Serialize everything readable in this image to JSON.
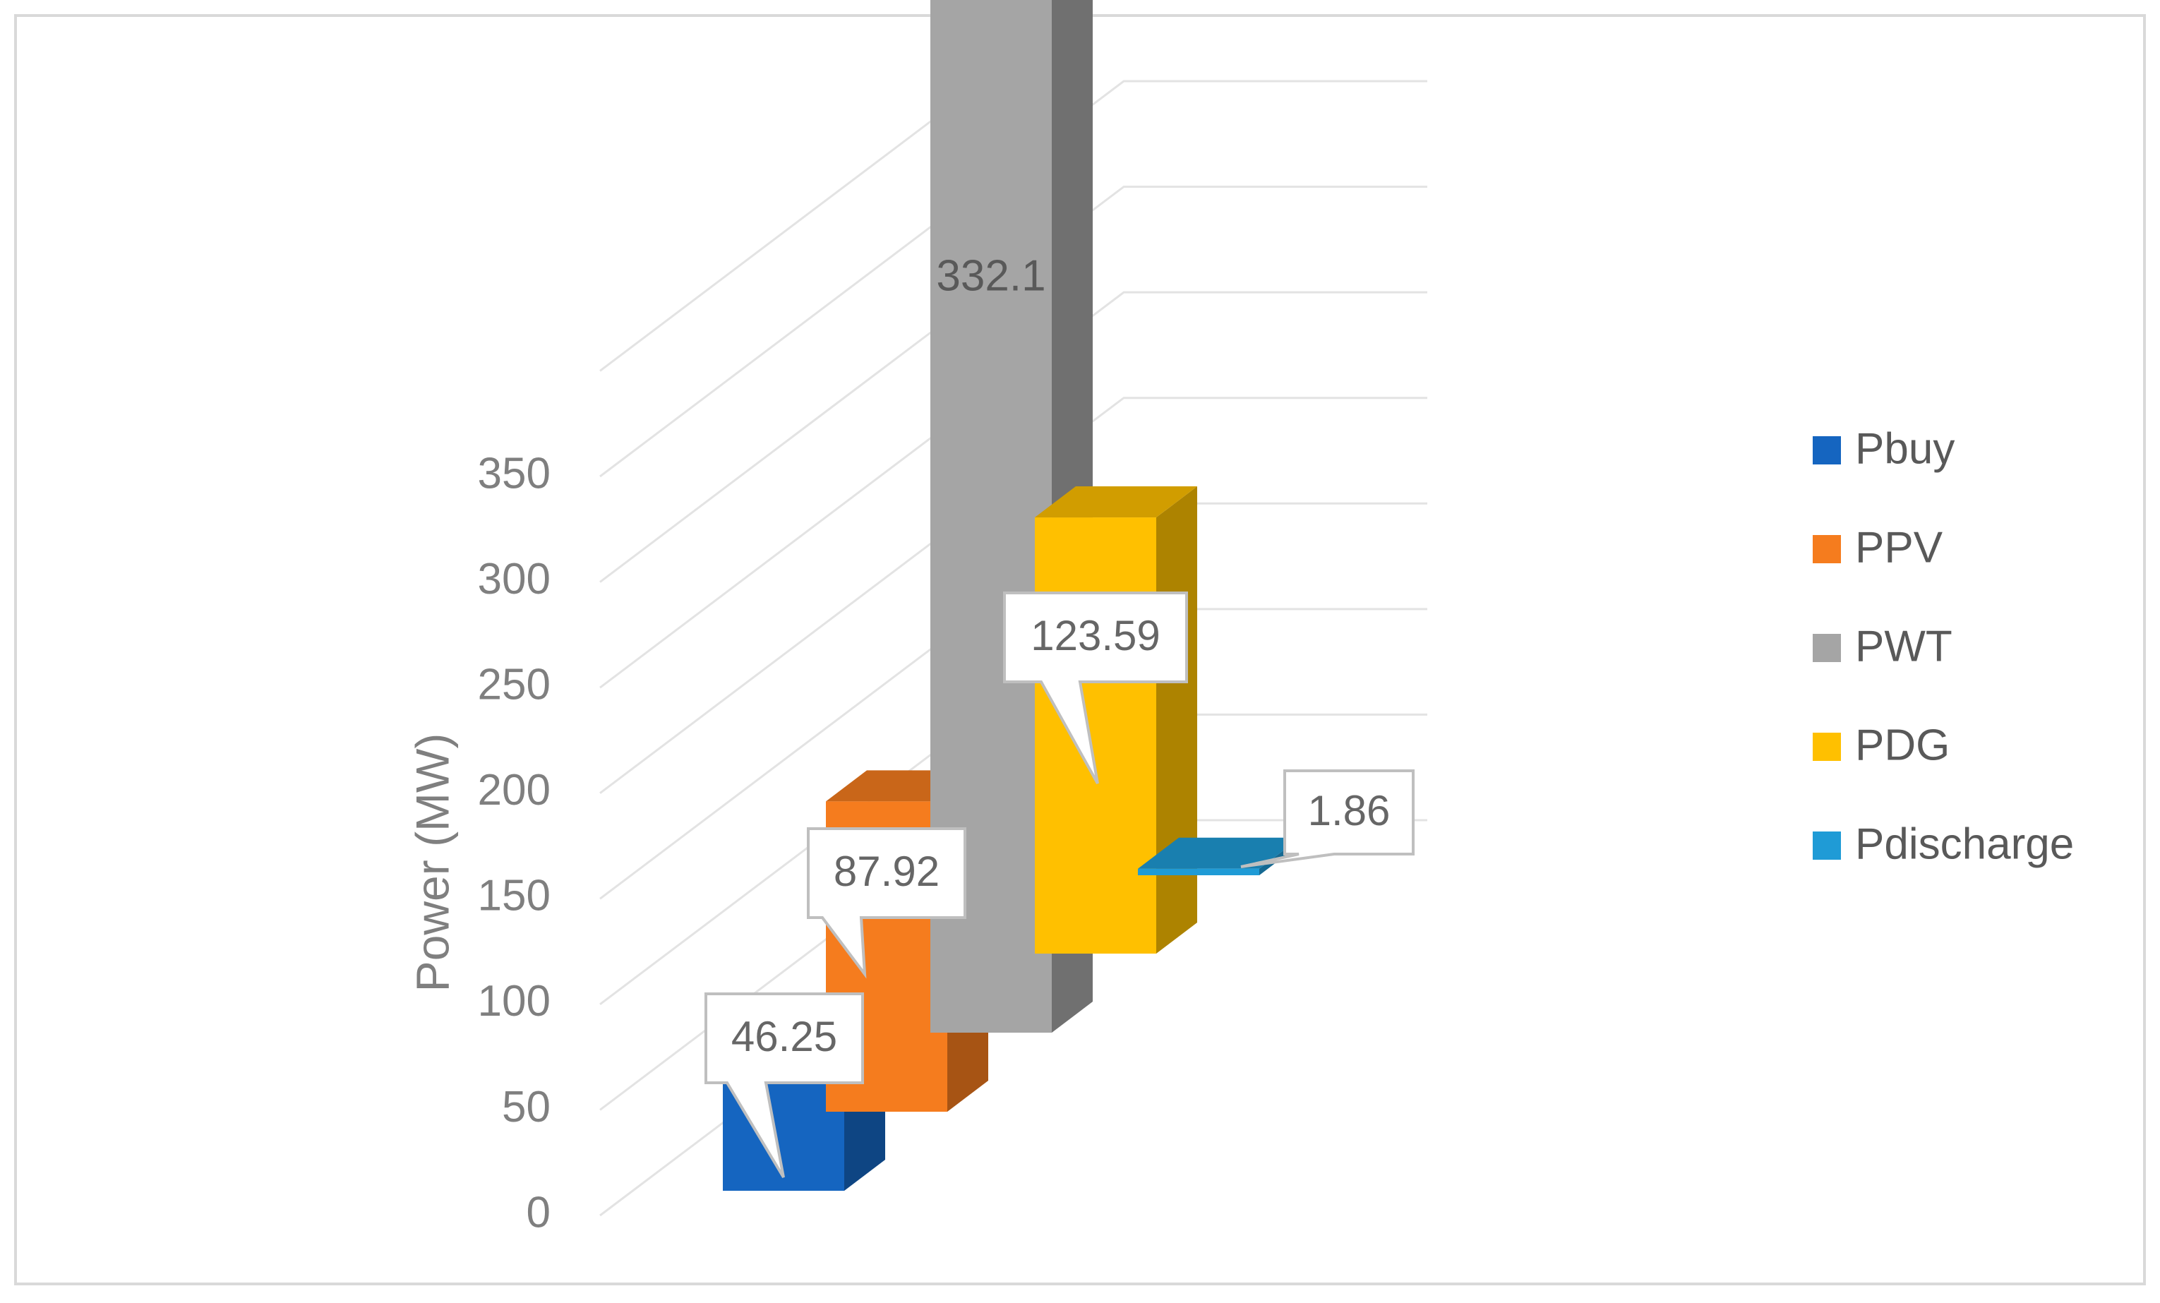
{
  "chart_data": {
    "type": "bar",
    "title": "",
    "xlabel": "",
    "ylabel": "Power (MW)",
    "ylim": [
      0,
      350
    ],
    "y_ticks": [
      0,
      50,
      100,
      150,
      200,
      250,
      300,
      350
    ],
    "y_tick_labels": [
      "0",
      "50",
      "100",
      "150",
      "200",
      "250",
      "300",
      "350"
    ],
    "grid": true,
    "view": "3d-column",
    "legend_position": "right",
    "series": [
      {
        "name": "Pbuy",
        "value": 46.25,
        "label": "46.25",
        "color": "#1565c0",
        "label_style": "callout"
      },
      {
        "name": "PPV",
        "value": 87.92,
        "label": "87.92",
        "color": "#f57c1e",
        "label_style": "callout"
      },
      {
        "name": "PWT",
        "value": 332.1,
        "label": "332.1",
        "color": "#a5a5a5",
        "label_style": "plain"
      },
      {
        "name": "PDG",
        "value": 123.59,
        "label": "123.59",
        "color": "#ffc000",
        "label_style": "callout"
      },
      {
        "name": "Pdischarge",
        "value": 1.86,
        "label": "1.86",
        "color": "#1f9bd6",
        "label_style": "callout"
      }
    ]
  }
}
